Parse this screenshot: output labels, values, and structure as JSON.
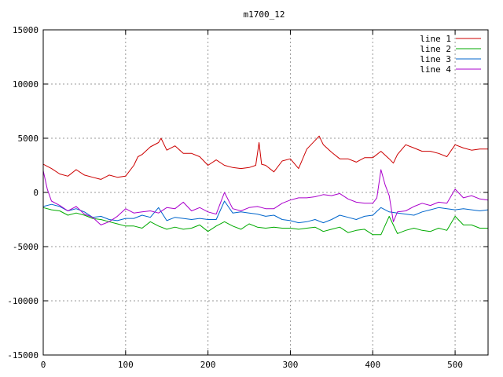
{
  "chart_data": {
    "type": "line",
    "title": "m1700_12",
    "xlabel": "",
    "ylabel": "",
    "xlim": [
      0,
      540
    ],
    "ylim": [
      -15000,
      15000
    ],
    "xticks": [
      0,
      100,
      200,
      300,
      400,
      500
    ],
    "yticks": [
      -15000,
      -10000,
      -5000,
      0,
      5000,
      10000,
      15000
    ],
    "grid": true,
    "legend_position": "top-right",
    "series": [
      {
        "name": "line 1",
        "color": "#cc0000",
        "x": [
          0,
          10,
          20,
          30,
          40,
          50,
          60,
          70,
          80,
          90,
          100,
          110,
          115,
          120,
          130,
          140,
          143,
          150,
          160,
          170,
          180,
          190,
          200,
          210,
          220,
          230,
          240,
          250,
          258,
          262,
          265,
          270,
          280,
          290,
          300,
          310,
          320,
          330,
          335,
          340,
          350,
          360,
          370,
          380,
          390,
          400,
          410,
          420,
          425,
          430,
          440,
          450,
          460,
          470,
          480,
          490,
          500,
          510,
          520,
          530,
          540
        ],
        "y": [
          2600,
          2200,
          1700,
          1500,
          2100,
          1600,
          1400,
          1200,
          1600,
          1400,
          1500,
          2500,
          3300,
          3500,
          4200,
          4600,
          5000,
          3900,
          4300,
          3600,
          3600,
          3300,
          2500,
          3000,
          2500,
          2300,
          2200,
          2300,
          2500,
          4600,
          2600,
          2500,
          1900,
          2900,
          3100,
          2200,
          4000,
          4800,
          5200,
          4400,
          3700,
          3100,
          3100,
          2800,
          3200,
          3200,
          3800,
          3100,
          2700,
          3500,
          4400,
          4100,
          3800,
          3800,
          3600,
          3300,
          4400,
          4100,
          3900,
          4000,
          4000
        ]
      },
      {
        "name": "line 2",
        "color": "#00aa00",
        "x": [
          0,
          10,
          20,
          30,
          40,
          50,
          60,
          70,
          80,
          90,
          100,
          110,
          120,
          130,
          140,
          150,
          160,
          170,
          180,
          190,
          200,
          210,
          220,
          230,
          240,
          250,
          260,
          270,
          280,
          290,
          300,
          310,
          320,
          330,
          340,
          350,
          360,
          370,
          380,
          390,
          400,
          410,
          420,
          430,
          440,
          450,
          460,
          470,
          480,
          490,
          500,
          510,
          520,
          530,
          540
        ],
        "y": [
          -1400,
          -1600,
          -1700,
          -2100,
          -1900,
          -2100,
          -2400,
          -2500,
          -2700,
          -2900,
          -3100,
          -3100,
          -3300,
          -2700,
          -3100,
          -3400,
          -3200,
          -3400,
          -3300,
          -3000,
          -3600,
          -3100,
          -2700,
          -3100,
          -3400,
          -2900,
          -3200,
          -3300,
          -3200,
          -3300,
          -3300,
          -3400,
          -3300,
          -3200,
          -3600,
          -3400,
          -3200,
          -3700,
          -3500,
          -3400,
          -3900,
          -3900,
          -2200,
          -3800,
          -3500,
          -3300,
          -3500,
          -3600,
          -3300,
          -3500,
          -2200,
          -3000,
          -3000,
          -3300,
          -3300
        ]
      },
      {
        "name": "line 3",
        "color": "#0066cc",
        "x": [
          0,
          10,
          20,
          30,
          40,
          50,
          60,
          70,
          80,
          90,
          100,
          110,
          120,
          130,
          140,
          150,
          160,
          170,
          180,
          190,
          200,
          210,
          220,
          230,
          240,
          250,
          260,
          270,
          280,
          290,
          300,
          310,
          320,
          330,
          340,
          350,
          360,
          370,
          380,
          390,
          400,
          410,
          420,
          430,
          440,
          450,
          460,
          470,
          480,
          490,
          500,
          510,
          520,
          530,
          540
        ],
        "y": [
          -1300,
          -1100,
          -1300,
          -1700,
          -1500,
          -1800,
          -2300,
          -2200,
          -2500,
          -2600,
          -2400,
          -2400,
          -2100,
          -2300,
          -1400,
          -2600,
          -2300,
          -2400,
          -2500,
          -2400,
          -2500,
          -2500,
          -800,
          -1900,
          -1800,
          -1900,
          -2000,
          -2200,
          -2100,
          -2500,
          -2600,
          -2800,
          -2700,
          -2500,
          -2800,
          -2500,
          -2100,
          -2300,
          -2500,
          -2200,
          -2100,
          -1400,
          -1800,
          -1900,
          -2000,
          -2100,
          -1800,
          -1600,
          -1400,
          -1500,
          -1600,
          -1500,
          -1600,
          -1700,
          -1600
        ]
      },
      {
        "name": "line 4",
        "color": "#aa00cc",
        "x": [
          0,
          5,
          10,
          20,
          30,
          40,
          50,
          60,
          70,
          80,
          90,
          100,
          110,
          120,
          130,
          140,
          150,
          160,
          170,
          180,
          190,
          200,
          210,
          220,
          230,
          240,
          250,
          260,
          270,
          280,
          290,
          300,
          310,
          320,
          330,
          340,
          350,
          360,
          370,
          380,
          390,
          400,
          405,
          410,
          415,
          420,
          425,
          430,
          440,
          450,
          460,
          470,
          480,
          490,
          500,
          510,
          520,
          530,
          540
        ],
        "y": [
          2000,
          300,
          -800,
          -1200,
          -1700,
          -1300,
          -2000,
          -2300,
          -3000,
          -2700,
          -2200,
          -1500,
          -1900,
          -1800,
          -1700,
          -1900,
          -1400,
          -1500,
          -900,
          -1700,
          -1400,
          -1800,
          -2000,
          0,
          -1500,
          -1700,
          -1400,
          -1300,
          -1500,
          -1500,
          -1000,
          -700,
          -500,
          -500,
          -400,
          -200,
          -300,
          -100,
          -600,
          -900,
          -1000,
          -1000,
          -500,
          2100,
          700,
          -300,
          -2700,
          -1800,
          -1700,
          -1300,
          -1000,
          -1200,
          -900,
          -1000,
          300,
          -500,
          -300,
          -600,
          -700
        ]
      }
    ]
  }
}
